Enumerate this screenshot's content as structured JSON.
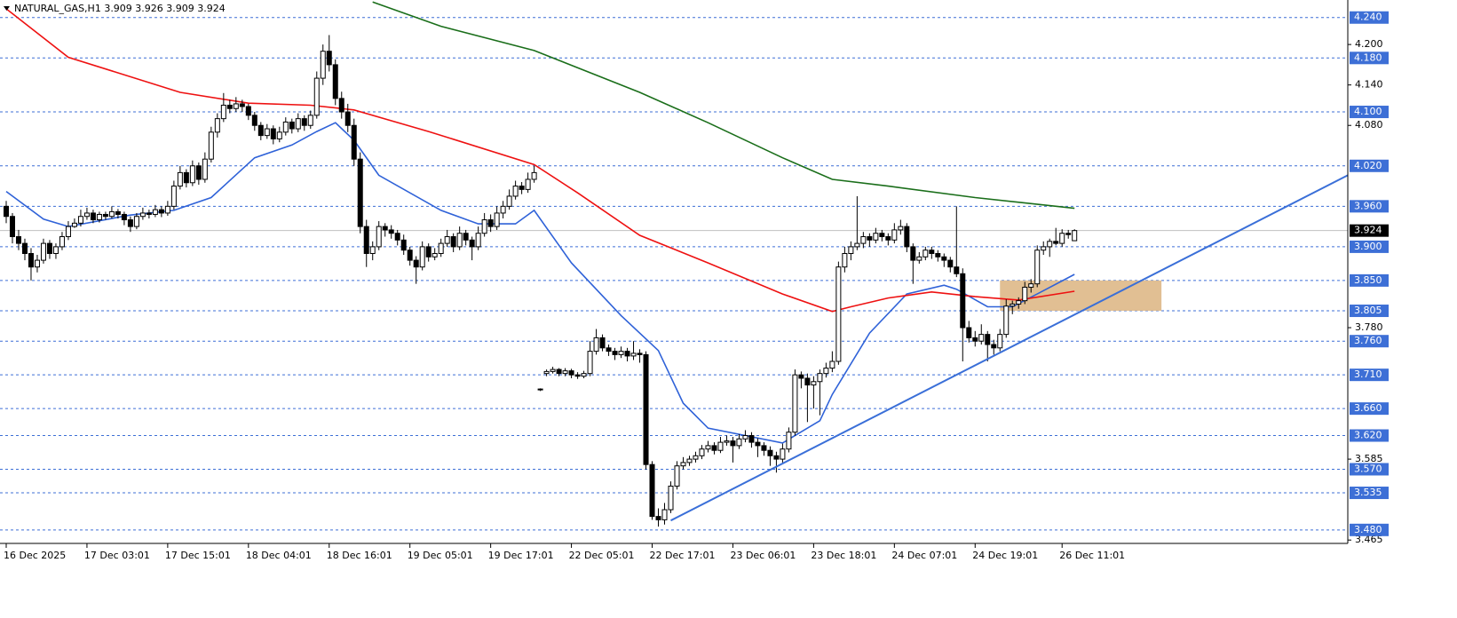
{
  "chart_data": {
    "type": "candlestick",
    "title": "NATURAL_GAS,H1  3.909 3.926 3.909 3.924",
    "xlim": [
      -1,
      216
    ],
    "ylim": [
      3.46,
      4.266
    ],
    "xticks": [
      {
        "value": 0,
        "label": "16 Dec 2025"
      },
      {
        "value": 13,
        "label": "17 Dec 03:01"
      },
      {
        "value": 26,
        "label": "17 Dec 15:01"
      },
      {
        "value": 39,
        "label": "18 Dec 04:01"
      },
      {
        "value": 52,
        "label": "18 Dec 16:01"
      },
      {
        "value": 65,
        "label": "19 Dec 05:01"
      },
      {
        "value": 78,
        "label": "19 Dec 17:01"
      },
      {
        "value": 91,
        "label": "22 Dec 05:01"
      },
      {
        "value": 104,
        "label": "22 Dec 17:01"
      },
      {
        "value": 117,
        "label": "23 Dec 06:01"
      },
      {
        "value": 130,
        "label": "23 Dec 18:01"
      },
      {
        "value": 143,
        "label": "24 Dec 07:01"
      },
      {
        "value": 156,
        "label": "24 Dec 19:01"
      },
      {
        "value": 170,
        "label": "26 Dec 11:01"
      }
    ],
    "yticks": [
      {
        "value": 4.2,
        "label": "4.200"
      },
      {
        "value": 4.14,
        "label": "4.140"
      },
      {
        "value": 4.08,
        "label": "4.080"
      },
      {
        "value": 3.78,
        "label": "3.780"
      },
      {
        "value": 3.585,
        "label": "3.585"
      },
      {
        "value": 3.465,
        "label": "3.465"
      }
    ],
    "levels": {
      "color": "#3d6fd6",
      "values": [
        {
          "value": 4.24,
          "label": "4.240"
        },
        {
          "value": 4.18,
          "label": "4.180"
        },
        {
          "value": 4.1,
          "label": "4.100"
        },
        {
          "value": 4.02,
          "label": "4.020"
        },
        {
          "value": 3.96,
          "label": "3.960"
        },
        {
          "value": 3.9,
          "label": "3.900"
        },
        {
          "value": 3.85,
          "label": "3.850"
        },
        {
          "value": 3.805,
          "label": "3.805"
        },
        {
          "value": 3.76,
          "label": "3.760"
        },
        {
          "value": 3.71,
          "label": "3.710"
        },
        {
          "value": 3.66,
          "label": "3.660"
        },
        {
          "value": 3.62,
          "label": "3.620"
        },
        {
          "value": 3.57,
          "label": "3.570"
        },
        {
          "value": 3.535,
          "label": "3.535"
        },
        {
          "value": 3.48,
          "label": "3.480"
        }
      ]
    },
    "current_price": {
      "value": 3.924,
      "label": "3.924",
      "color": "#c0c0c0"
    },
    "zone": {
      "color": "#deb887",
      "x": [
        160,
        186
      ],
      "y": [
        3.805,
        3.85
      ]
    },
    "trendline": {
      "color": "#3a6fd8",
      "x": [
        107,
        216
      ],
      "values": [
        3.494,
        4.006
      ]
    },
    "series": [
      {
        "color": "#2f62d8",
        "x": [
          0,
          6,
          10,
          20,
          27,
          33,
          40,
          46,
          50,
          53,
          56,
          60,
          70,
          76,
          82,
          85,
          91,
          99,
          105,
          109,
          113,
          125,
          131,
          133,
          139,
          145,
          151,
          153,
          158,
          162,
          166,
          172
        ],
        "values": [
          3.982,
          3.941,
          3.93,
          3.947,
          3.954,
          3.973,
          4.032,
          4.051,
          4.071,
          4.084,
          4.058,
          4.006,
          3.954,
          3.934,
          3.934,
          3.954,
          3.876,
          3.798,
          3.746,
          3.668,
          3.631,
          3.609,
          3.642,
          3.681,
          3.772,
          3.83,
          3.843,
          3.837,
          3.811,
          3.811,
          3.83,
          3.859
        ]
      },
      {
        "color": "#ee1111",
        "x": [
          0,
          10,
          28,
          39,
          49,
          56,
          68,
          85,
          92,
          102,
          113,
          125,
          133,
          136,
          142,
          149,
          156,
          163,
          172
        ],
        "values": [
          4.253,
          4.181,
          4.129,
          4.113,
          4.11,
          4.103,
          4.071,
          4.022,
          3.98,
          3.917,
          3.876,
          3.83,
          3.804,
          3.811,
          3.824,
          3.833,
          3.826,
          3.821,
          3.834
        ]
      },
      {
        "color": "#1a6e1a",
        "x": [
          59,
          70,
          85,
          102,
          113,
          125,
          133,
          142,
          156,
          172
        ],
        "values": [
          4.263,
          4.227,
          4.191,
          4.129,
          4.084,
          4.032,
          4.0,
          3.99,
          3.973,
          3.957
        ]
      }
    ],
    "candles": [
      [
        3.96,
        3.968,
        3.935,
        3.945
      ],
      [
        3.945,
        3.95,
        3.905,
        3.915
      ],
      [
        3.915,
        3.925,
        3.895,
        3.905
      ],
      [
        3.905,
        3.912,
        3.88,
        3.89
      ],
      [
        3.89,
        3.898,
        3.85,
        3.87
      ],
      [
        3.87,
        3.888,
        3.862,
        3.88
      ],
      [
        3.88,
        3.912,
        3.875,
        3.905
      ],
      [
        3.905,
        3.91,
        3.882,
        3.89
      ],
      [
        3.89,
        3.905,
        3.882,
        3.9
      ],
      [
        3.9,
        3.922,
        3.895,
        3.915
      ],
      [
        3.915,
        3.938,
        3.91,
        3.93
      ],
      [
        3.93,
        3.942,
        3.928,
        3.935
      ],
      [
        3.935,
        3.955,
        3.93,
        3.945
      ],
      [
        3.945,
        3.958,
        3.94,
        3.95
      ],
      [
        3.95,
        3.955,
        3.935,
        3.94
      ],
      [
        3.94,
        3.952,
        3.936,
        3.948
      ],
      [
        3.948,
        3.952,
        3.94,
        3.945
      ],
      [
        3.945,
        3.96,
        3.942,
        3.952
      ],
      [
        3.952,
        3.956,
        3.942,
        3.948
      ],
      [
        3.948,
        3.952,
        3.932,
        3.94
      ],
      [
        3.94,
        3.945,
        3.922,
        3.93
      ],
      [
        3.93,
        3.95,
        3.926,
        3.945
      ],
      [
        3.945,
        3.958,
        3.94,
        3.95
      ],
      [
        3.95,
        3.955,
        3.942,
        3.948
      ],
      [
        3.948,
        3.962,
        3.944,
        3.955
      ],
      [
        3.955,
        3.96,
        3.944,
        3.95
      ],
      [
        3.95,
        3.968,
        3.946,
        3.96
      ],
      [
        3.96,
        3.998,
        3.955,
        3.99
      ],
      [
        3.99,
        4.02,
        3.985,
        4.01
      ],
      [
        4.01,
        4.015,
        3.988,
        3.995
      ],
      [
        3.995,
        4.028,
        3.99,
        4.02
      ],
      [
        4.02,
        4.025,
        3.992,
        4.0
      ],
      [
        4.0,
        4.04,
        3.995,
        4.03
      ],
      [
        4.03,
        4.078,
        4.025,
        4.07
      ],
      [
        4.07,
        4.098,
        4.062,
        4.09
      ],
      [
        4.09,
        4.128,
        4.085,
        4.11
      ],
      [
        4.11,
        4.118,
        4.098,
        4.105
      ],
      [
        4.105,
        4.122,
        4.1,
        4.112
      ],
      [
        4.112,
        4.118,
        4.1,
        4.108
      ],
      [
        4.108,
        4.112,
        4.088,
        4.095
      ],
      [
        4.095,
        4.1,
        4.072,
        4.08
      ],
      [
        4.08,
        4.085,
        4.058,
        4.065
      ],
      [
        4.065,
        4.082,
        4.06,
        4.075
      ],
      [
        4.075,
        4.08,
        4.052,
        4.06
      ],
      [
        4.06,
        4.078,
        4.055,
        4.07
      ],
      [
        4.07,
        4.092,
        4.065,
        4.085
      ],
      [
        4.085,
        4.09,
        4.068,
        4.075
      ],
      [
        4.075,
        4.098,
        4.07,
        4.09
      ],
      [
        4.09,
        4.095,
        4.072,
        4.08
      ],
      [
        4.08,
        4.102,
        4.075,
        4.095
      ],
      [
        4.095,
        4.16,
        4.09,
        4.15
      ],
      [
        4.15,
        4.2,
        4.14,
        4.19
      ],
      [
        4.19,
        4.214,
        4.16,
        4.17
      ],
      [
        4.17,
        4.178,
        4.11,
        4.12
      ],
      [
        4.12,
        4.13,
        4.09,
        4.1
      ],
      [
        4.1,
        4.112,
        4.07,
        4.08
      ],
      [
        4.08,
        4.09,
        4.02,
        4.03
      ],
      [
        4.03,
        4.04,
        3.92,
        3.93
      ],
      [
        3.93,
        3.94,
        3.87,
        3.89
      ],
      [
        3.89,
        3.908,
        3.88,
        3.9
      ],
      [
        3.9,
        3.938,
        3.895,
        3.93
      ],
      [
        3.93,
        3.935,
        3.915,
        3.925
      ],
      [
        3.925,
        3.932,
        3.912,
        3.92
      ],
      [
        3.92,
        3.925,
        3.902,
        3.91
      ],
      [
        3.91,
        3.918,
        3.888,
        3.895
      ],
      [
        3.895,
        3.9,
        3.872,
        3.88
      ],
      [
        3.88,
        3.886,
        3.845,
        3.87
      ],
      [
        3.87,
        3.908,
        3.865,
        3.9
      ],
      [
        3.9,
        3.905,
        3.878,
        3.885
      ],
      [
        3.885,
        3.898,
        3.88,
        3.89
      ],
      [
        3.89,
        3.912,
        3.885,
        3.905
      ],
      [
        3.905,
        3.925,
        3.9,
        3.915
      ],
      [
        3.915,
        3.92,
        3.892,
        3.9
      ],
      [
        3.9,
        3.93,
        3.895,
        3.92
      ],
      [
        3.92,
        3.925,
        3.902,
        3.91
      ],
      [
        3.91,
        3.915,
        3.88,
        3.9
      ],
      [
        3.9,
        3.93,
        3.895,
        3.92
      ],
      [
        3.92,
        3.95,
        3.915,
        3.94
      ],
      [
        3.94,
        3.948,
        3.922,
        3.93
      ],
      [
        3.93,
        3.96,
        3.925,
        3.95
      ],
      [
        3.95,
        3.968,
        3.942,
        3.96
      ],
      [
        3.96,
        3.985,
        3.955,
        3.975
      ],
      [
        3.975,
        3.998,
        3.97,
        3.99
      ],
      [
        3.99,
        3.996,
        3.978,
        3.985
      ],
      [
        3.985,
        4.01,
        3.98,
        4.0
      ],
      [
        4.0,
        4.02,
        3.995,
        4.01
      ],
      [
        3.689,
        3.69,
        3.686,
        3.689
      ],
      [
        3.712,
        3.718,
        3.708,
        3.715
      ],
      [
        3.715,
        3.722,
        3.712,
        3.718
      ],
      [
        3.718,
        3.72,
        3.708,
        3.712
      ],
      [
        3.712,
        3.72,
        3.708,
        3.716
      ],
      [
        3.716,
        3.719,
        3.705,
        3.71
      ],
      [
        3.71,
        3.714,
        3.704,
        3.708
      ],
      [
        3.708,
        3.716,
        3.705,
        3.712
      ],
      [
        3.712,
        3.76,
        3.708,
        3.745
      ],
      [
        3.745,
        3.778,
        3.74,
        3.765
      ],
      [
        3.765,
        3.77,
        3.745,
        3.75
      ],
      [
        3.75,
        3.755,
        3.738,
        3.745
      ],
      [
        3.745,
        3.75,
        3.732,
        3.74
      ],
      [
        3.74,
        3.752,
        3.735,
        3.745
      ],
      [
        3.745,
        3.75,
        3.73,
        3.738
      ],
      [
        3.738,
        3.76,
        3.732,
        3.742
      ],
      [
        3.742,
        3.748,
        3.728,
        3.74
      ],
      [
        3.74,
        3.745,
        3.57,
        3.577
      ],
      [
        3.577,
        3.582,
        3.495,
        3.5
      ],
      [
        3.5,
        3.512,
        3.485,
        3.495
      ],
      [
        3.495,
        3.52,
        3.488,
        3.51
      ],
      [
        3.51,
        3.552,
        3.505,
        3.545
      ],
      [
        3.545,
        3.582,
        3.54,
        3.575
      ],
      [
        3.575,
        3.588,
        3.57,
        3.58
      ],
      [
        3.58,
        3.59,
        3.575,
        3.585
      ],
      [
        3.585,
        3.596,
        3.58,
        3.59
      ],
      [
        3.59,
        3.606,
        3.585,
        3.6
      ],
      [
        3.6,
        3.612,
        3.595,
        3.605
      ],
      [
        3.605,
        3.61,
        3.592,
        3.598
      ],
      [
        3.598,
        3.618,
        3.594,
        3.61
      ],
      [
        3.61,
        3.62,
        3.605,
        3.612
      ],
      [
        3.612,
        3.618,
        3.58,
        3.605
      ],
      [
        3.605,
        3.622,
        3.6,
        3.615
      ],
      [
        3.615,
        3.628,
        3.61,
        3.62
      ],
      [
        3.62,
        3.625,
        3.602,
        3.61
      ],
      [
        3.61,
        3.616,
        3.588,
        3.605
      ],
      [
        3.605,
        3.61,
        3.59,
        3.598
      ],
      [
        3.598,
        3.604,
        3.575,
        3.59
      ],
      [
        3.59,
        3.596,
        3.565,
        3.585
      ],
      [
        3.585,
        3.608,
        3.58,
        3.6
      ],
      [
        3.6,
        3.632,
        3.595,
        3.625
      ],
      [
        3.625,
        3.718,
        3.62,
        3.71
      ],
      [
        3.71,
        3.715,
        3.69,
        3.705
      ],
      [
        3.705,
        3.712,
        3.64,
        3.695
      ],
      [
        3.695,
        3.708,
        3.66,
        3.7
      ],
      [
        3.7,
        3.718,
        3.65,
        3.712
      ],
      [
        3.712,
        3.728,
        3.706,
        3.72
      ],
      [
        3.72,
        3.745,
        3.714,
        3.73
      ],
      [
        3.73,
        3.878,
        3.725,
        3.87
      ],
      [
        3.87,
        3.9,
        3.862,
        3.89
      ],
      [
        3.89,
        3.908,
        3.88,
        3.9
      ],
      [
        3.9,
        3.975,
        3.895,
        3.905
      ],
      [
        3.905,
        3.922,
        3.898,
        3.915
      ],
      [
        3.915,
        3.92,
        3.9,
        3.91
      ],
      [
        3.91,
        3.928,
        3.905,
        3.92
      ],
      [
        3.92,
        3.925,
        3.908,
        3.915
      ],
      [
        3.915,
        3.92,
        3.902,
        3.91
      ],
      [
        3.91,
        3.935,
        3.905,
        3.925
      ],
      [
        3.925,
        3.94,
        3.918,
        3.93
      ],
      [
        3.93,
        3.935,
        3.892,
        3.9
      ],
      [
        3.9,
        3.905,
        3.845,
        3.88
      ],
      [
        3.88,
        3.892,
        3.875,
        3.885
      ],
      [
        3.885,
        3.9,
        3.88,
        3.895
      ],
      [
        3.895,
        3.9,
        3.882,
        3.89
      ],
      [
        3.89,
        3.895,
        3.878,
        3.885
      ],
      [
        3.885,
        3.89,
        3.87,
        3.88
      ],
      [
        3.88,
        3.885,
        3.862,
        3.87
      ],
      [
        3.87,
        3.96,
        3.855,
        3.86
      ],
      [
        3.86,
        3.868,
        3.73,
        3.78
      ],
      [
        3.78,
        3.79,
        3.758,
        3.765
      ],
      [
        3.765,
        3.775,
        3.752,
        3.76
      ],
      [
        3.76,
        3.785,
        3.755,
        3.77
      ],
      [
        3.77,
        3.775,
        3.73,
        3.755
      ],
      [
        3.755,
        3.762,
        3.74,
        3.75
      ],
      [
        3.75,
        3.778,
        3.745,
        3.77
      ],
      [
        3.77,
        3.822,
        3.765,
        3.812
      ],
      [
        3.812,
        3.82,
        3.8,
        3.815
      ],
      [
        3.815,
        3.825,
        3.808,
        3.82
      ],
      [
        3.82,
        3.848,
        3.815,
        3.84
      ],
      [
        3.84,
        3.852,
        3.832,
        3.845
      ],
      [
        3.845,
        3.902,
        3.84,
        3.895
      ],
      [
        3.895,
        3.908,
        3.888,
        3.9
      ],
      [
        3.9,
        3.912,
        3.885,
        3.908
      ],
      [
        3.908,
        3.928,
        3.902,
        3.905
      ],
      [
        3.905,
        3.926,
        3.9,
        3.92
      ],
      [
        3.92,
        3.925,
        3.912,
        3.918
      ],
      [
        3.909,
        3.926,
        3.909,
        3.924
      ]
    ]
  }
}
